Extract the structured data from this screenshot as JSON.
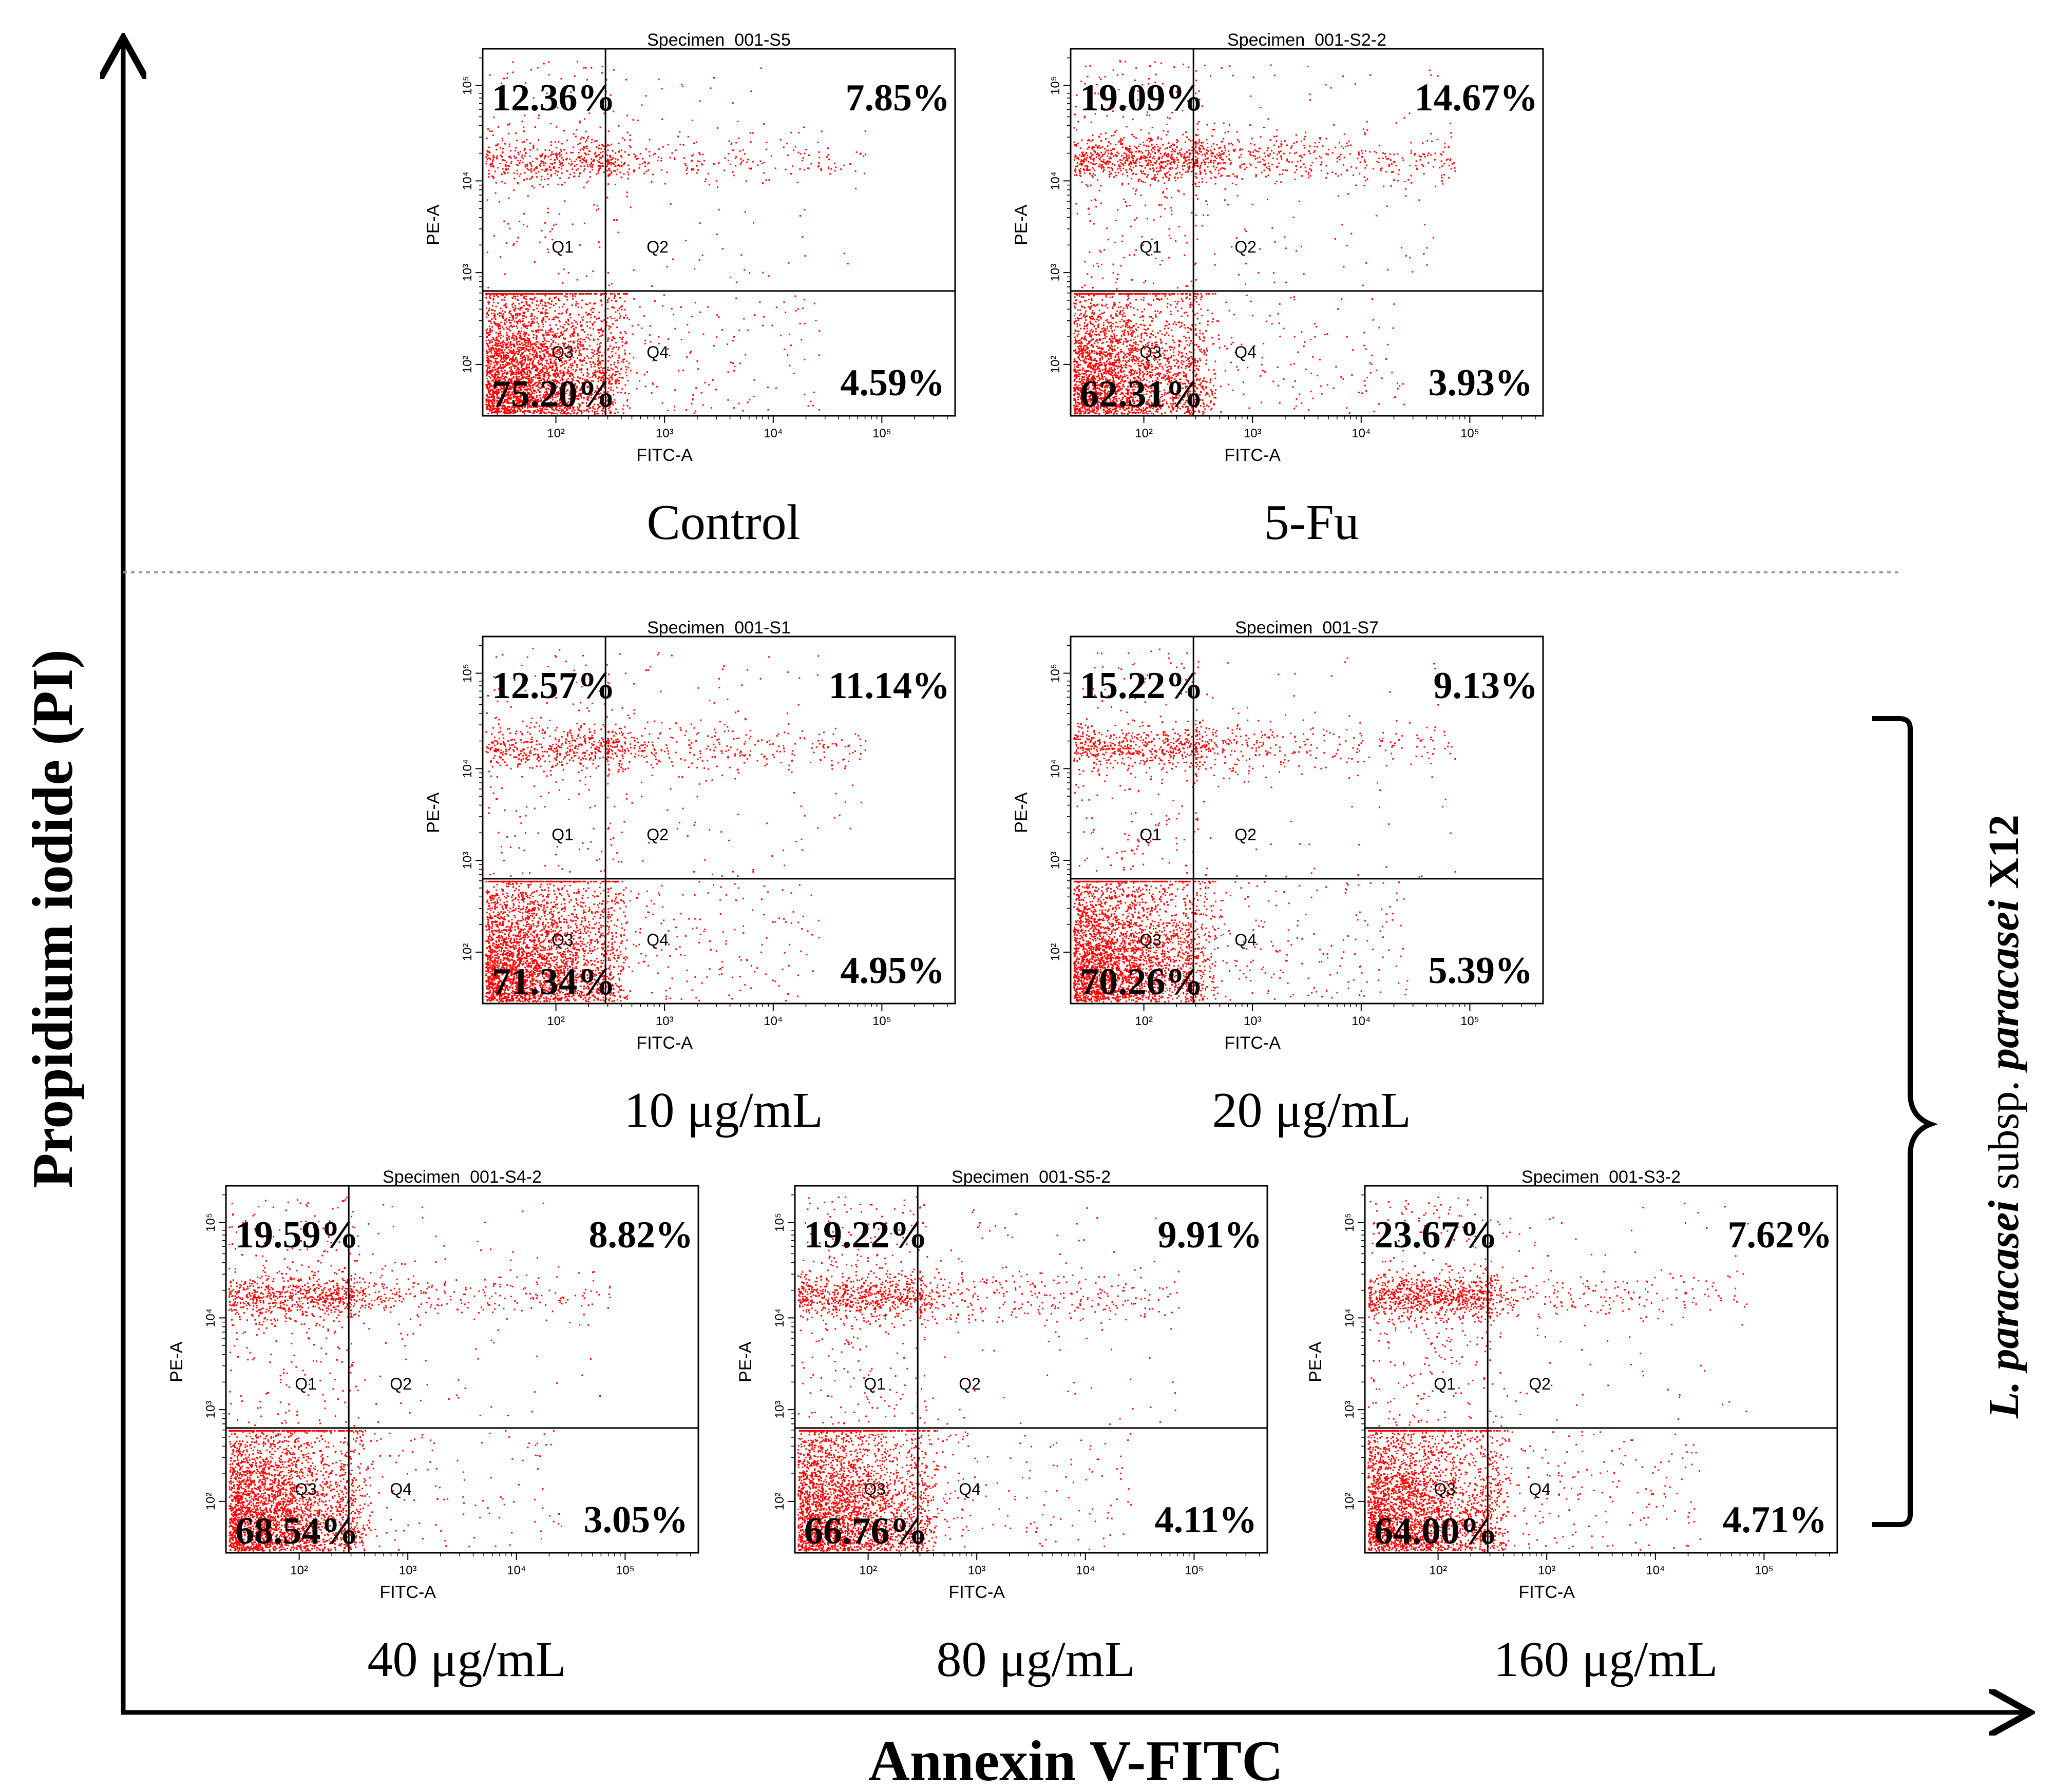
{
  "figure": {
    "x_axis_title": "Annexin V-FITC",
    "y_axis_title": "Propidium iodide (PI)",
    "bracket_label": {
      "genus": "L. paracasei",
      "subsp": "subsp.",
      "epithet": "paracasei",
      "strain": "X12"
    },
    "colors": {
      "dots": "#ff0000",
      "axis": "#000000",
      "separator": "#999999"
    }
  },
  "chart_data": [
    {
      "type": "scatter",
      "title": "Specimen_001-S5",
      "caption": "Control",
      "xlabel": "FITC-A",
      "ylabel": "PE-A",
      "x_ticks": [
        "10²",
        "10³",
        "10⁴",
        "10⁵"
      ],
      "y_ticks": [
        "10²",
        "10³",
        "10⁴",
        "10⁵"
      ],
      "quadrants": [
        "Q1",
        "Q2",
        "Q3",
        "Q4"
      ],
      "percentages": {
        "Q1": "12.36%",
        "Q2": "7.85%",
        "Q3": "75.20%",
        "Q4": "4.59%"
      }
    },
    {
      "type": "scatter",
      "title": "Specimen_001-S2-2",
      "caption": "5-Fu",
      "xlabel": "FITC-A",
      "ylabel": "PE-A",
      "x_ticks": [
        "10²",
        "10³",
        "10⁴",
        "10⁵"
      ],
      "y_ticks": [
        "10²",
        "10³",
        "10⁴",
        "10⁵"
      ],
      "quadrants": [
        "Q1",
        "Q2",
        "Q3",
        "Q4"
      ],
      "percentages": {
        "Q1": "19.09%",
        "Q2": "14.67%",
        "Q3": "62.31%",
        "Q4": "3.93%"
      }
    },
    {
      "type": "scatter",
      "title": "Specimen_001-S1",
      "caption": "10 μg/mL",
      "xlabel": "FITC-A",
      "ylabel": "PE-A",
      "x_ticks": [
        "10²",
        "10³",
        "10⁴",
        "10⁵"
      ],
      "y_ticks": [
        "10²",
        "10³",
        "10⁴",
        "10⁵"
      ],
      "quadrants": [
        "Q1",
        "Q2",
        "Q3",
        "Q4"
      ],
      "percentages": {
        "Q1": "12.57%",
        "Q2": "11.14%",
        "Q3": "71.34%",
        "Q4": "4.95%"
      }
    },
    {
      "type": "scatter",
      "title": "Specimen_001-S7",
      "caption": "20 μg/mL",
      "xlabel": "FITC-A",
      "ylabel": "PE-A",
      "x_ticks": [
        "10²",
        "10³",
        "10⁴",
        "10⁵"
      ],
      "y_ticks": [
        "10²",
        "10³",
        "10⁴",
        "10⁵"
      ],
      "quadrants": [
        "Q1",
        "Q2",
        "Q3",
        "Q4"
      ],
      "percentages": {
        "Q1": "15.22%",
        "Q2": "9.13%",
        "Q3": "70.26%",
        "Q4": "5.39%"
      }
    },
    {
      "type": "scatter",
      "title": "Specimen_001-S4-2",
      "caption": "40 μg/mL",
      "xlabel": "FITC-A",
      "ylabel": "PE-A",
      "x_ticks": [
        "10²",
        "10³",
        "10⁴",
        "10⁵"
      ],
      "y_ticks": [
        "10²",
        "10³",
        "10⁴",
        "10⁵"
      ],
      "quadrants": [
        "Q1",
        "Q2",
        "Q3",
        "Q4"
      ],
      "percentages": {
        "Q1": "19.59%",
        "Q2": "8.82%",
        "Q3": "68.54%",
        "Q4": "3.05%"
      }
    },
    {
      "type": "scatter",
      "title": "Specimen_001-S5-2",
      "caption": "80 μg/mL",
      "xlabel": "FITC-A",
      "ylabel": "PE-A",
      "x_ticks": [
        "10²",
        "10³",
        "10⁴",
        "10⁵"
      ],
      "y_ticks": [
        "10²",
        "10³",
        "10⁴",
        "10⁵"
      ],
      "quadrants": [
        "Q1",
        "Q2",
        "Q3",
        "Q4"
      ],
      "percentages": {
        "Q1": "19.22%",
        "Q2": "9.91%",
        "Q3": "66.76%",
        "Q4": "4.11%"
      }
    },
    {
      "type": "scatter",
      "title": "Specimen_001-S3-2",
      "caption": "160 μg/mL",
      "xlabel": "FITC-A",
      "ylabel": "PE-A",
      "x_ticks": [
        "10²",
        "10³",
        "10⁴",
        "10⁵"
      ],
      "y_ticks": [
        "10²",
        "10³",
        "10⁴",
        "10⁵"
      ],
      "quadrants": [
        "Q1",
        "Q2",
        "Q3",
        "Q4"
      ],
      "percentages": {
        "Q1": "23.67%",
        "Q2": "7.62%",
        "Q3": "64.00%",
        "Q4": "4.71%"
      }
    }
  ]
}
